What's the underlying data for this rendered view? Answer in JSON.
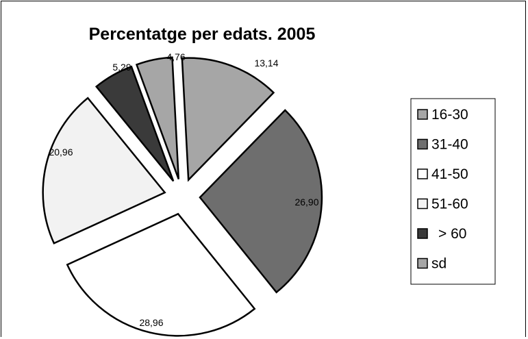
{
  "chart_data": {
    "type": "pie",
    "title": "Percentatge per edats. 2005",
    "exploded": true,
    "categories": [
      "16-30",
      "31-40",
      "41-50",
      "51-60",
      "> 60",
      "sd"
    ],
    "values": [
      13.14,
      26.9,
      28.96,
      20.96,
      5.29,
      4.76
    ],
    "value_labels": [
      "13,14",
      "26,90",
      "28,96",
      "20,96",
      "5,29",
      "4,76"
    ],
    "colors": [
      "#a6a6a6",
      "#6e6e6e",
      "#ffffff",
      "#f2f2f2",
      "#3a3a3a",
      "#a6a6a6"
    ],
    "legend": {
      "position": "right",
      "entries": [
        "16-30",
        "31-40",
        "41-50",
        "51-60",
        "> 60",
        "sd"
      ]
    }
  }
}
